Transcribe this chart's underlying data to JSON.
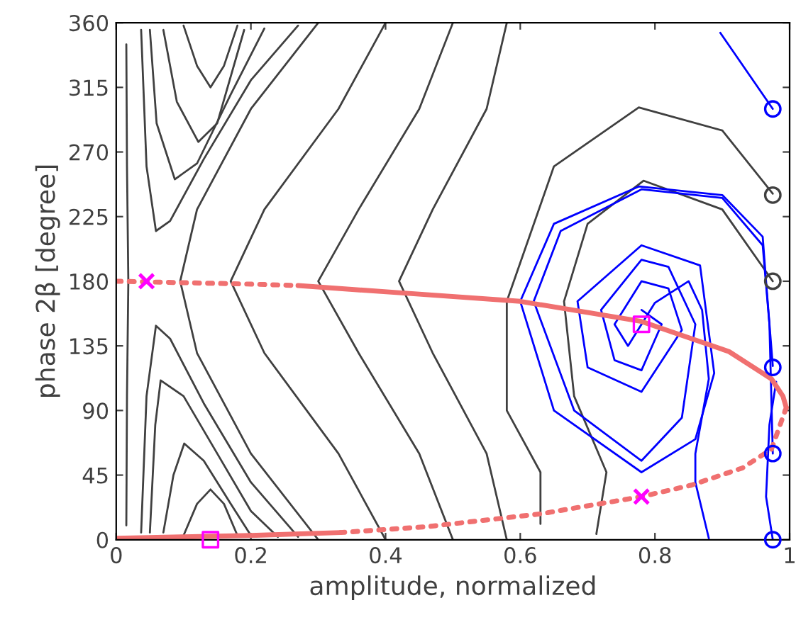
{
  "chart_data": {
    "type": "line",
    "xlabel": "amplitude, normalized",
    "ylabel": "phase 2β [degree]",
    "xlim": [
      0,
      1
    ],
    "ylim": [
      0,
      360
    ],
    "xticks": [
      0,
      0.2,
      0.4,
      0.6,
      0.8,
      1
    ],
    "yticks": [
      0,
      45,
      90,
      135,
      180,
      225,
      270,
      315,
      360
    ],
    "grid": false,
    "legend": false,
    "series": [
      {
        "type": "line",
        "color": "#404040",
        "line_style": "solid",
        "x": [
          0.015,
          0.016,
          0.018,
          0.016,
          0.015
        ],
        "values": [
          345,
          260,
          180,
          100,
          10
        ]
      },
      {
        "type": "line",
        "color": "#404040",
        "line_style": "solid",
        "x": [
          0.037,
          0.045,
          0.059,
          0.08,
          0.13,
          0.2,
          0.27
        ],
        "values": [
          355,
          260,
          215,
          222,
          265,
          320,
          358
        ]
      },
      {
        "type": "line",
        "color": "#404040",
        "line_style": "solid",
        "x": [
          0.05,
          0.06,
          0.087,
          0.12,
          0.17,
          0.22
        ],
        "values": [
          355,
          290,
          251,
          262,
          310,
          356
        ]
      },
      {
        "type": "line",
        "color": "#404040",
        "line_style": "solid",
        "x": [
          0.07,
          0.09,
          0.122,
          0.15,
          0.19
        ],
        "values": [
          355,
          305,
          277,
          290,
          355
        ]
      },
      {
        "type": "line",
        "color": "#404040",
        "line_style": "solid",
        "x": [
          0.1,
          0.12,
          0.14,
          0.16,
          0.18
        ],
        "values": [
          358,
          330,
          315,
          330,
          358
        ]
      },
      {
        "type": "line",
        "color": "#404040",
        "line_style": "solid",
        "x": [
          0.037,
          0.045,
          0.059,
          0.08,
          0.13,
          0.2,
          0.27
        ],
        "values": [
          5,
          100,
          149,
          140,
          95,
          40,
          2
        ]
      },
      {
        "type": "line",
        "color": "#404040",
        "line_style": "solid",
        "x": [
          0.05,
          0.058,
          0.066,
          0.1,
          0.15,
          0.2,
          0.24
        ],
        "values": [
          5,
          80,
          111,
          100,
          60,
          20,
          2
        ]
      },
      {
        "type": "line",
        "color": "#404040",
        "line_style": "solid",
        "x": [
          0.07,
          0.085,
          0.101,
          0.13,
          0.17,
          0.2
        ],
        "values": [
          5,
          45,
          67,
          55,
          25,
          3
        ]
      },
      {
        "type": "line",
        "color": "#404040",
        "line_style": "solid",
        "x": [
          0.1,
          0.12,
          0.14,
          0.16,
          0.18
        ],
        "values": [
          3,
          25,
          35,
          25,
          3
        ]
      },
      {
        "type": "line",
        "color": "#404040",
        "line_style": "solid",
        "x": [
          0.3,
          0.2,
          0.12,
          0.095,
          0.12,
          0.2,
          0.3
        ],
        "values": [
          360,
          300,
          230,
          180,
          130,
          60,
          0
        ]
      },
      {
        "type": "line",
        "color": "#404040",
        "line_style": "solid",
        "x": [
          0.4,
          0.33,
          0.22,
          0.17,
          0.22,
          0.33,
          0.4
        ],
        "values": [
          360,
          300,
          230,
          180,
          130,
          60,
          0
        ]
      },
      {
        "type": "line",
        "color": "#404040",
        "line_style": "solid",
        "x": [
          0.5,
          0.45,
          0.36,
          0.3,
          0.36,
          0.45,
          0.5
        ],
        "values": [
          360,
          300,
          230,
          180,
          130,
          60,
          0
        ]
      },
      {
        "type": "line",
        "color": "#404040",
        "line_style": "solid",
        "x": [
          0.58,
          0.55,
          0.47,
          0.42,
          0.47,
          0.55,
          0.58
        ],
        "values": [
          360,
          300,
          230,
          180,
          130,
          60,
          0
        ]
      },
      {
        "type": "line",
        "color": "#404040",
        "line_style": "solid",
        "x": [
          0.975,
          0.9,
          0.776,
          0.65,
          0.58,
          0.58,
          0.63,
          0.63
        ],
        "values": [
          241,
          285,
          301,
          260,
          166,
          90,
          47,
          11
        ]
      },
      {
        "type": "line",
        "color": "#404040",
        "line_style": "solid",
        "x": [
          0.975,
          0.9,
          0.783,
          0.7,
          0.665,
          0.68,
          0.728,
          0.713
        ],
        "values": [
          180,
          230,
          250,
          220,
          166,
          100,
          47,
          4
        ]
      },
      {
        "type": "line",
        "color": "#0000ff",
        "line_style": "solid",
        "x": [
          0.975,
          0.965,
          0.96,
          0.9,
          0.776,
          0.65,
          0.6,
          0.65,
          0.78,
          0.86,
          0.888,
          0.867,
          0.78,
          0.685,
          0.7,
          0.78,
          0.84,
          0.82,
          0.78,
          0.74,
          0.76,
          0.78
        ],
        "values": [
          121,
          180,
          211,
          240,
          246,
          220,
          166,
          90,
          47,
          70,
          116,
          191,
          205,
          166,
          120,
          103,
          146,
          175,
          180,
          150,
          135,
          150
        ]
      },
      {
        "type": "line",
        "color": "#0000ff",
        "line_style": "solid",
        "x": [
          0.975,
          0.97,
          0.96,
          0.9,
          0.78,
          0.66,
          0.62,
          0.68,
          0.78,
          0.84,
          0.86,
          0.82,
          0.78,
          0.72,
          0.74,
          0.78,
          0.81,
          0.78
        ],
        "values": [
          60,
          150,
          205,
          238,
          244,
          215,
          166,
          90,
          55,
          85,
          150,
          190,
          195,
          160,
          125,
          118,
          150,
          160
        ]
      },
      {
        "type": "line",
        "color": "#0000ff",
        "line_style": "solid",
        "x": [
          0.975,
          0.965,
          0.97,
          0.98
        ],
        "values": [
          0,
          30,
          80,
          110
        ]
      },
      {
        "type": "line",
        "color": "#0000ff",
        "line_style": "solid",
        "x": [
          0.88,
          0.86,
          0.86,
          0.88,
          0.87,
          0.85,
          0.8,
          0.78
        ],
        "values": [
          1,
          40,
          60,
          112,
          160,
          180,
          165,
          150
        ]
      },
      {
        "type": "line",
        "color": "#0000ff",
        "line_style": "solid",
        "x": [
          0.897,
          0.975
        ],
        "values": [
          353,
          300
        ]
      },
      {
        "type": "line",
        "color": "#f07070",
        "line_style": "dotted",
        "x": [
          0,
          0.1,
          0.2,
          0.27
        ],
        "values": [
          180,
          179,
          178,
          177
        ]
      },
      {
        "type": "line",
        "color": "#f07070",
        "line_style": "solid",
        "x": [
          0.27,
          0.42,
          0.6,
          0.78,
          0.91,
          0.973,
          0.99,
          0.995
        ],
        "values": [
          177,
          172,
          166,
          152,
          131,
          112,
          100,
          92
        ]
      },
      {
        "type": "line",
        "color": "#f07070",
        "line_style": "dotted",
        "x": [
          0.995,
          0.973,
          0.93,
          0.854,
          0.78,
          0.63,
          0.46,
          0.333
        ],
        "values": [
          92,
          63,
          50,
          38,
          30,
          18,
          9,
          5
        ]
      },
      {
        "type": "line",
        "color": "#f07070",
        "line_style": "solid",
        "x": [
          0.333,
          0.2,
          0.1,
          0
        ],
        "values": [
          5,
          3,
          2,
          1
        ]
      },
      {
        "type": "scatter",
        "color": "#0000ff",
        "marker": "circle",
        "x": [
          0.975,
          0.975,
          0.975,
          0.975
        ],
        "values": [
          300,
          120,
          60,
          0
        ]
      },
      {
        "type": "scatter",
        "color": "#404040",
        "marker": "circle",
        "x": [
          0.975,
          0.975
        ],
        "values": [
          240,
          180
        ]
      },
      {
        "type": "scatter",
        "color": "#ff00ff",
        "marker": "square",
        "x": [
          0.14,
          0.78
        ],
        "values": [
          0,
          150
        ]
      },
      {
        "type": "scatter",
        "color": "#ff00ff",
        "marker": "cross",
        "x": [
          0.045,
          0.78
        ],
        "values": [
          180,
          30
        ]
      }
    ]
  }
}
